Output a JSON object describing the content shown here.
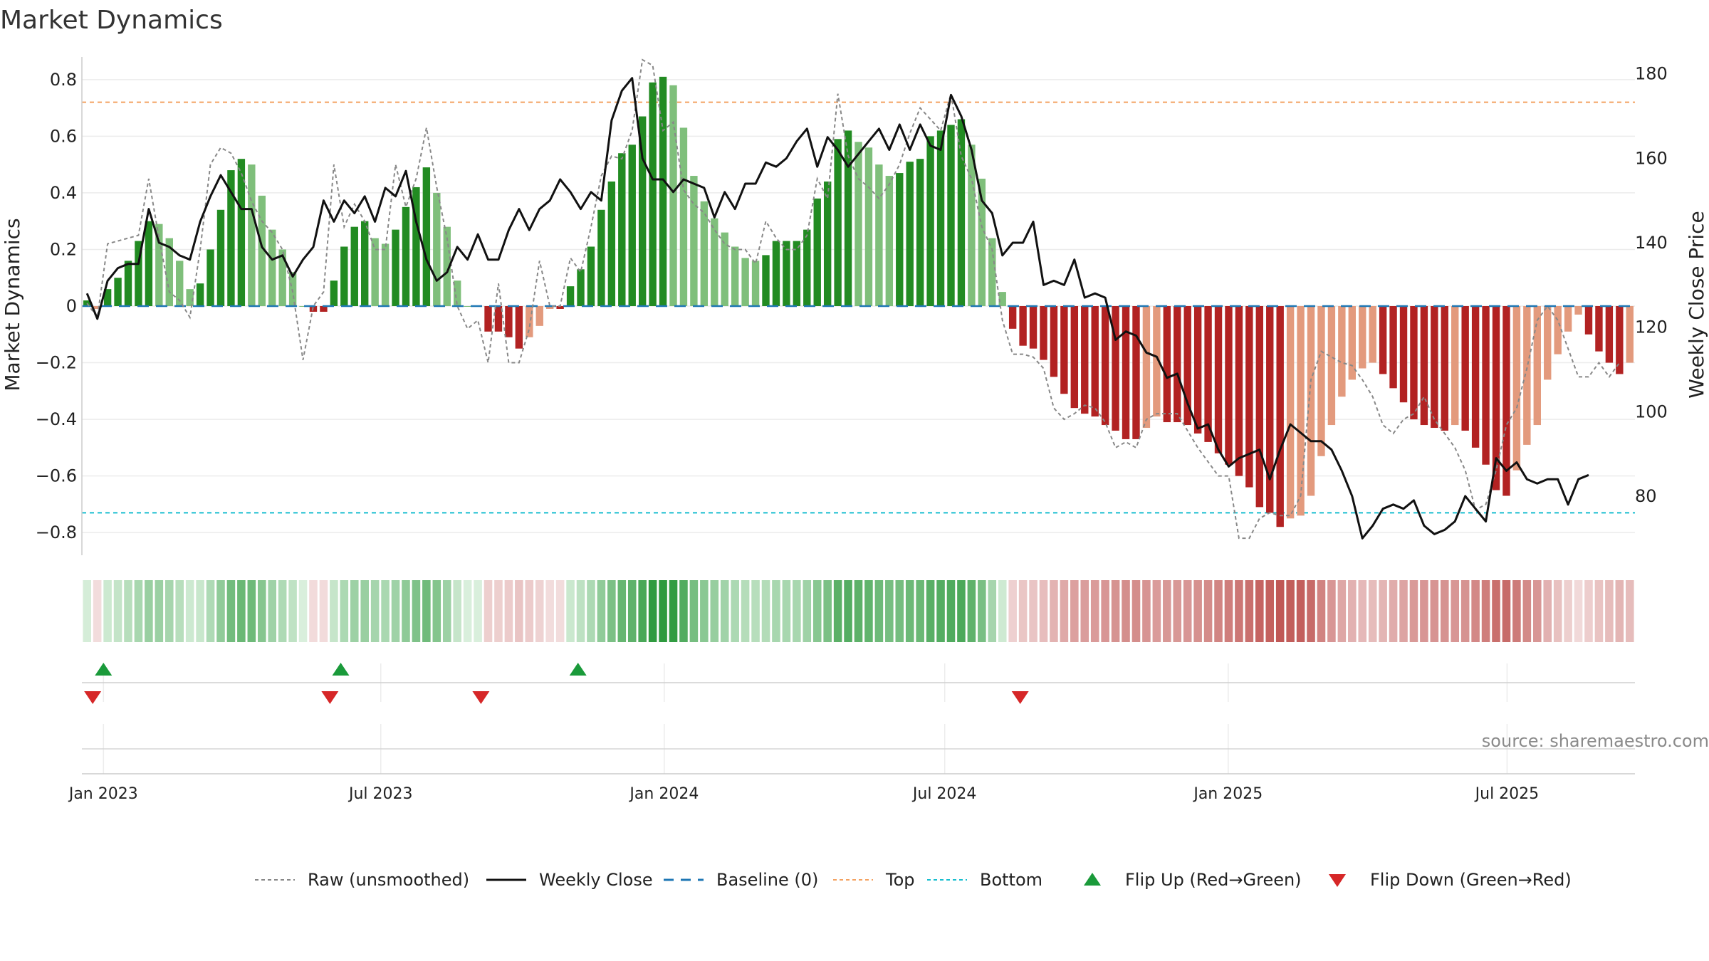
{
  "chart_data": {
    "type": "bar",
    "title": "Market Dynamics",
    "ylabel_left": "Market Dynamics",
    "ylabel_right": "Weekly Close Price",
    "source": "source: sharemaestro.com",
    "ylim_left": [
      -0.88,
      0.88
    ],
    "ylim_right": [
      66,
      184
    ],
    "yticks_left": [
      0.8,
      0.6,
      0.4,
      0.2,
      0,
      -0.2,
      -0.4,
      -0.6,
      -0.8
    ],
    "yticks_left_labels": [
      "0.8",
      "0.6",
      "0.4",
      "0.2",
      "0",
      "−0.2",
      "−0.4",
      "−0.6",
      "−0.8"
    ],
    "yticks_right": [
      180,
      160,
      140,
      120,
      100,
      80
    ],
    "x_start": "2022-12-19",
    "x_end": "2025-09-22",
    "x_ticks": [
      {
        "date": "2023-01-02",
        "label": "Jan 2023"
      },
      {
        "date": "2023-07-01",
        "label": "Jul 2023"
      },
      {
        "date": "2024-01-01",
        "label": "Jan 2024"
      },
      {
        "date": "2024-07-01",
        "label": "Jul 2024"
      },
      {
        "date": "2025-01-01",
        "label": "Jan 2025"
      },
      {
        "date": "2025-07-01",
        "label": "Jul 2025"
      }
    ],
    "top_threshold": 0.72,
    "bottom_threshold": -0.73,
    "baseline": 0,
    "grid": true,
    "legend_position": "bottom",
    "colors": {
      "strong_green": "#228b22",
      "light_green": "#7fbf7b",
      "strong_red": "#b22222",
      "light_red": "#e39a7d",
      "close_line": "#111111",
      "raw_line": "#888888",
      "baseline": "#1f77b4",
      "top": "#f4a261",
      "bottom": "#17becf",
      "flip_up": "#1a9a3a",
      "flip_down": "#d62728"
    },
    "series": [
      {
        "name": "Market Dynamics bars",
        "values": [
          0.02,
          -0.01,
          0.06,
          0.1,
          0.16,
          0.23,
          0.3,
          0.29,
          0.24,
          0.16,
          0.06,
          0.08,
          0.2,
          0.34,
          0.48,
          0.52,
          0.5,
          0.39,
          0.27,
          0.2,
          0.12,
          0.0,
          -0.02,
          -0.02,
          0.09,
          0.21,
          0.28,
          0.3,
          0.24,
          0.22,
          0.27,
          0.35,
          0.42,
          0.49,
          0.4,
          0.28,
          0.09,
          0.0,
          0.0,
          -0.09,
          -0.09,
          -0.11,
          -0.15,
          -0.11,
          -0.07,
          -0.01,
          -0.01,
          0.07,
          0.13,
          0.21,
          0.34,
          0.44,
          0.54,
          0.57,
          0.67,
          0.79,
          0.81,
          0.78,
          0.63,
          0.46,
          0.37,
          0.31,
          0.26,
          0.21,
          0.17,
          0.16,
          0.18,
          0.23,
          0.23,
          0.23,
          0.27,
          0.38,
          0.44,
          0.59,
          0.62,
          0.58,
          0.56,
          0.5,
          0.46,
          0.47,
          0.51,
          0.52,
          0.6,
          0.62,
          0.64,
          0.66,
          0.57,
          0.45,
          0.24,
          0.05,
          -0.08,
          -0.14,
          -0.15,
          -0.19,
          -0.25,
          -0.31,
          -0.36,
          -0.38,
          -0.39,
          -0.42,
          -0.44,
          -0.47,
          -0.47,
          -0.43,
          -0.39,
          -0.41,
          -0.41,
          -0.42,
          -0.45,
          -0.48,
          -0.52,
          -0.56,
          -0.6,
          -0.64,
          -0.71,
          -0.73,
          -0.78,
          -0.75,
          -0.74,
          -0.67,
          -0.53,
          -0.42,
          -0.32,
          -0.26,
          -0.22,
          -0.2,
          -0.24,
          -0.29,
          -0.34,
          -0.4,
          -0.42,
          -0.43,
          -0.44,
          -0.42,
          -0.44,
          -0.5,
          -0.56,
          -0.65,
          -0.67,
          -0.58,
          -0.49,
          -0.42,
          -0.26,
          -0.17,
          -0.09,
          -0.03,
          -0.1,
          -0.16,
          -0.2,
          -0.24,
          -0.2
        ]
      },
      {
        "name": "Raw (unsmoothed)",
        "values": [
          0.01,
          -0.04,
          0.22,
          0.23,
          0.24,
          0.25,
          0.45,
          0.24,
          0.05,
          0.02,
          -0.04,
          0.2,
          0.5,
          0.56,
          0.54,
          0.47,
          0.37,
          0.3,
          0.26,
          0.2,
          0.05,
          -0.19,
          0.0,
          0.05,
          0.5,
          0.28,
          0.36,
          0.3,
          0.2,
          0.2,
          0.5,
          0.35,
          0.45,
          0.63,
          0.42,
          0.24,
          0.0,
          -0.08,
          -0.05,
          -0.2,
          0.08,
          -0.2,
          -0.2,
          -0.08,
          0.16,
          0.0,
          0.0,
          0.17,
          0.12,
          0.28,
          0.46,
          0.53,
          0.52,
          0.62,
          0.87,
          0.85,
          0.62,
          0.65,
          0.41,
          0.36,
          0.33,
          0.27,
          0.22,
          0.2,
          0.2,
          0.15,
          0.3,
          0.24,
          0.2,
          0.2,
          0.25,
          0.45,
          0.38,
          0.75,
          0.53,
          0.45,
          0.42,
          0.38,
          0.43,
          0.5,
          0.61,
          0.7,
          0.66,
          0.62,
          0.75,
          0.53,
          0.45,
          0.28,
          0.2,
          -0.05,
          -0.17,
          -0.17,
          -0.18,
          -0.22,
          -0.36,
          -0.4,
          -0.38,
          -0.35,
          -0.36,
          -0.41,
          -0.5,
          -0.48,
          -0.5,
          -0.4,
          -0.38,
          -0.38,
          -0.38,
          -0.44,
          -0.5,
          -0.55,
          -0.6,
          -0.6,
          -0.82,
          -0.82,
          -0.75,
          -0.73,
          -0.74,
          -0.74,
          -0.67,
          -0.26,
          -0.16,
          -0.18,
          -0.2,
          -0.21,
          -0.26,
          -0.32,
          -0.42,
          -0.45,
          -0.4,
          -0.38,
          -0.32,
          -0.4,
          -0.45,
          -0.5,
          -0.58,
          -0.72,
          -0.7,
          -0.58,
          -0.42,
          -0.36,
          -0.22,
          -0.05,
          0.0,
          -0.05,
          -0.15,
          -0.25,
          -0.25,
          -0.2,
          -0.25,
          -0.2
        ]
      },
      {
        "name": "Weekly Close",
        "values": [
          128,
          122,
          131,
          134,
          135,
          135,
          148,
          140,
          139,
          137,
          136,
          145,
          151,
          156,
          152,
          148,
          148,
          139,
          136,
          137,
          132,
          136,
          139,
          150,
          145,
          150,
          147,
          151,
          145,
          153,
          151,
          157,
          145,
          136,
          131,
          133,
          139,
          136,
          142,
          136,
          136,
          143,
          148,
          143,
          148,
          150,
          155,
          152,
          148,
          152,
          150,
          169,
          176,
          179,
          160,
          155,
          155,
          152,
          155,
          154,
          153,
          146,
          152,
          148,
          154,
          154,
          159,
          158,
          160,
          164,
          167,
          158,
          165,
          162,
          158,
          161,
          164,
          167,
          162,
          168,
          162,
          168,
          163,
          162,
          175,
          170,
          162,
          150,
          147,
          137,
          140,
          140,
          145,
          130,
          131,
          130,
          136,
          127,
          128,
          127,
          117,
          119,
          118,
          114,
          113,
          108,
          109,
          102,
          96,
          97,
          91,
          87,
          89,
          90,
          91,
          84,
          91,
          97,
          95,
          93,
          93,
          91,
          86,
          80,
          70,
          73,
          77,
          78,
          77,
          79,
          73,
          71,
          72,
          74,
          80,
          77,
          74,
          89,
          86,
          88,
          84,
          83,
          84,
          84,
          78,
          84,
          85
        ]
      }
    ],
    "flips_up": [
      "2023-01-02",
      "2023-06-05",
      "2023-11-06"
    ],
    "flips_down": [
      "2022-12-26",
      "2023-05-29",
      "2023-09-04",
      "2024-08-19"
    ],
    "legend": [
      {
        "label": "Raw (unsmoothed)",
        "kind": "raw"
      },
      {
        "label": "Weekly Close",
        "kind": "close"
      },
      {
        "label": "Baseline (0)",
        "kind": "baseline"
      },
      {
        "label": "Top",
        "kind": "top"
      },
      {
        "label": "Bottom",
        "kind": "bottom"
      },
      {
        "label": "Flip Up (Red→Green)",
        "kind": "up"
      },
      {
        "label": "Flip Down (Green→Red)",
        "kind": "down"
      }
    ]
  }
}
